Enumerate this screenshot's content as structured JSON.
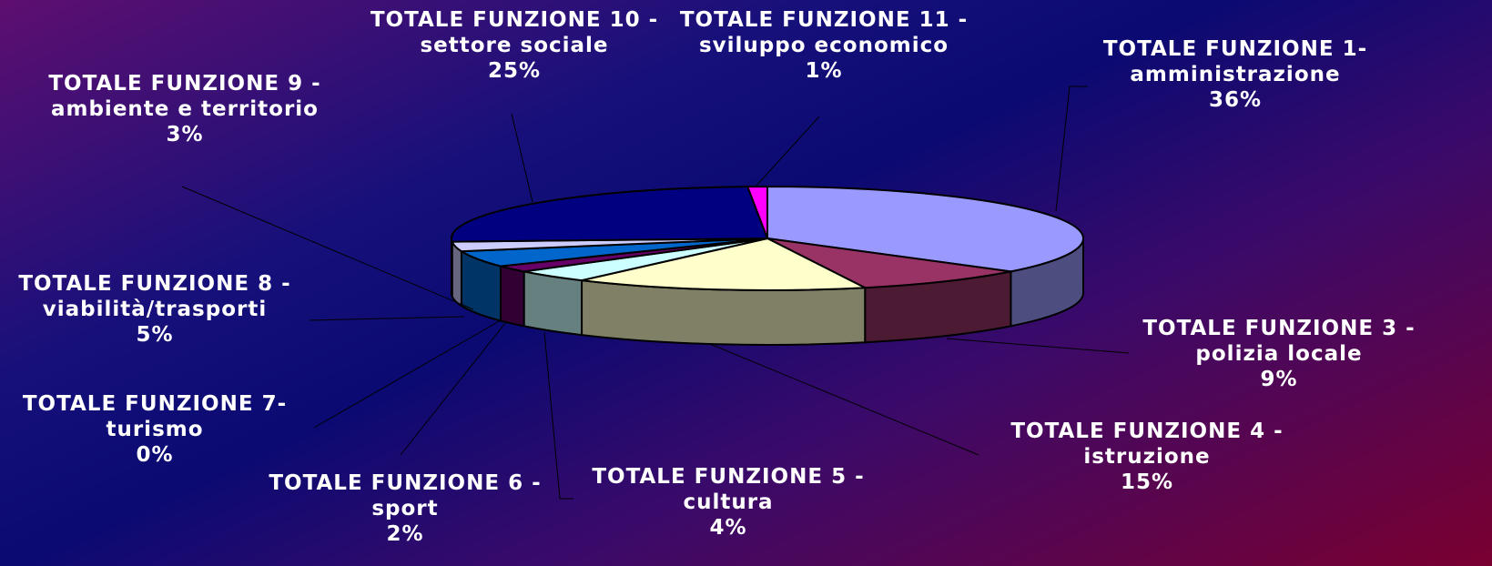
{
  "chart_data": {
    "type": "pie3d",
    "categories": [
      "TOTALE FUNZIONE 1- amministrazione",
      "TOTALE FUNZIONE 3 - polizia locale",
      "TOTALE FUNZIONE 4 - istruzione",
      "TOTALE FUNZIONE 5 - cultura",
      "TOTALE FUNZIONE 6 - sport",
      "TOTALE FUNZIONE 7- turismo",
      "TOTALE FUNZIONE 8 - viabilità/trasporti",
      "TOTALE FUNZIONE 9 - ambiente e territorio",
      "TOTALE FUNZIONE 10 - settore sociale",
      "TOTALE FUNZIONE 11 - sviluppo economico"
    ],
    "values": [
      36,
      9,
      15,
      4,
      2,
      0,
      5,
      3,
      25,
      1
    ],
    "value_labels": [
      "36%",
      "9%",
      "15%",
      "4%",
      "2%",
      "0%",
      "5%",
      "3%",
      "25%",
      "1%"
    ],
    "colors": [
      "#9999ff",
      "#993366",
      "#ffffcc",
      "#ccffff",
      "#660066",
      "#ff8080",
      "#0066cc",
      "#ccccff",
      "#000080",
      "#ff00ff"
    ]
  }
}
